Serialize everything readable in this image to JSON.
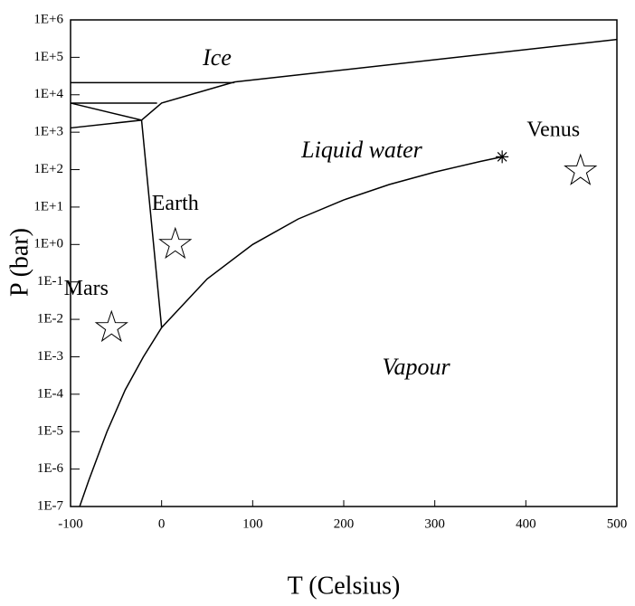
{
  "chart_data": {
    "type": "line",
    "xlabel": "T (Celsius)",
    "ylabel": "P (bar)",
    "xlim": [
      -100,
      500
    ],
    "xticks": [
      -100,
      0,
      100,
      200,
      300,
      400,
      500
    ],
    "ylim": [
      1e-07,
      1000000
    ],
    "log_y": true,
    "yticks": [
      {
        "value": 1e-07,
        "label": "1E-7"
      },
      {
        "value": 1e-06,
        "label": "1E-6"
      },
      {
        "value": 1e-05,
        "label": "1E-5"
      },
      {
        "value": 0.0001,
        "label": "1E-4"
      },
      {
        "value": 0.001,
        "label": "1E-3"
      },
      {
        "value": 0.01,
        "label": "1E-2"
      },
      {
        "value": 0.1,
        "label": "1E-1"
      },
      {
        "value": 1,
        "label": "1E+0"
      },
      {
        "value": 10,
        "label": "1E+1"
      },
      {
        "value": 100,
        "label": "1E+2"
      },
      {
        "value": 1000,
        "label": "1E+3"
      },
      {
        "value": 10000,
        "label": "1E+4"
      },
      {
        "value": 100000,
        "label": "1E+5"
      },
      {
        "value": 1000000,
        "label": "1E+6"
      }
    ],
    "series": [
      {
        "color": "#000000",
        "x": [
          -90,
          -80,
          -60,
          -40,
          -20,
          0,
          50,
          100,
          150,
          200,
          250,
          300,
          350,
          374
        ],
        "values": [
          1e-07,
          5e-07,
          1e-05,
          0.00013,
          0.001,
          0.006,
          0.12,
          1,
          4.8,
          15.5,
          40,
          86,
          165,
          220
        ]
      },
      {
        "color": "#000000",
        "x": [
          0,
          -22
        ],
        "values": [
          0.006,
          2100
        ]
      },
      {
        "color": "#000000",
        "x": [
          -22,
          0,
          80,
          500
        ],
        "values": [
          2100,
          6000,
          22000,
          300000
        ]
      },
      {
        "color": "#000000",
        "x": [
          -100,
          80
        ],
        "values": [
          21000,
          21000
        ]
      },
      {
        "color": "#000000",
        "x": [
          -100,
          -5
        ],
        "values": [
          6000,
          6000
        ]
      },
      {
        "color": "#000000",
        "x": [
          -100,
          -22
        ],
        "values": [
          6000,
          2100
        ]
      },
      {
        "color": "#000000",
        "x": [
          -100,
          -22
        ],
        "values": [
          1300,
          2100
        ]
      }
    ],
    "critical_point": {
      "x": 374,
      "y": 220
    },
    "planets": [
      {
        "label": "Mars",
        "x": -55,
        "y": 0.006
      },
      {
        "label": "Earth",
        "x": 15,
        "y": 1
      },
      {
        "label": "Venus",
        "x": 460,
        "y": 92
      }
    ],
    "annotations": [
      "Ice",
      "Liquid water",
      "Vapour"
    ]
  }
}
